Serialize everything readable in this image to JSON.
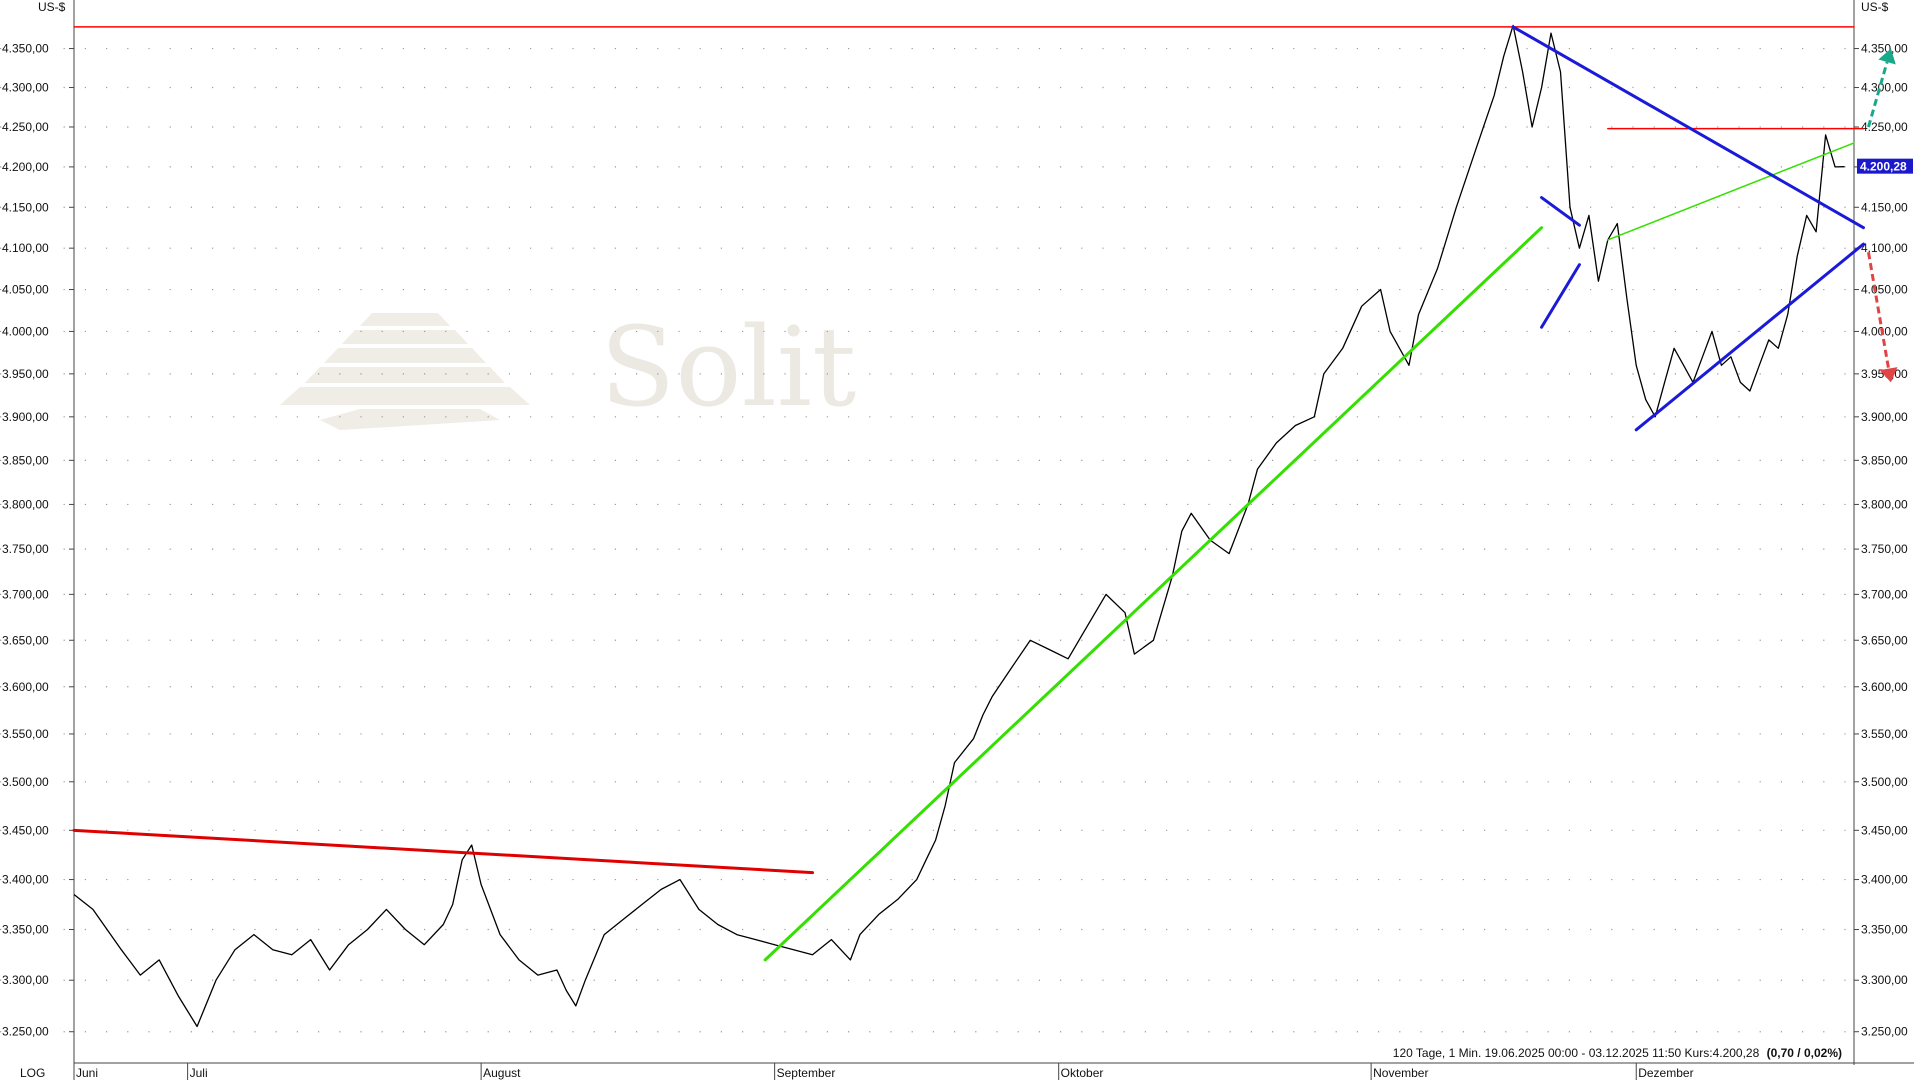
{
  "chart_data": {
    "type": "line",
    "currency_label": "US-$",
    "scale_label": "LOG",
    "watermark": "Solit",
    "footer": {
      "text": "120 Tage, 1 Min. 19.06.2025 00:00 - 03.12.2025 11:50 Kurs:4.200,28",
      "change": "(0,70 / 0,02%)"
    },
    "last_value_label": "4.200,28",
    "last_value": 4200.28,
    "ylim": [
      3220,
      4400
    ],
    "y_scale": "log",
    "grid": true,
    "y_ticks": [
      3250,
      3300,
      3350,
      3400,
      3450,
      3500,
      3550,
      3600,
      3650,
      3700,
      3750,
      3800,
      3850,
      3900,
      3950,
      4000,
      4050,
      4100,
      4150,
      4200,
      4250,
      4300,
      4350
    ],
    "y_tick_labels": [
      "3.250,00",
      "3.300,00",
      "3.350,00",
      "3.400,00",
      "3.450,00",
      "3.500,00",
      "3.550,00",
      "3.600,00",
      "3.650,00",
      "3.700,00",
      "3.750,00",
      "3.800,00",
      "3.850,00",
      "3.900,00",
      "3.950,00",
      "4.000,00",
      "4.050,00",
      "4.100,00",
      "4.150,00",
      "4.200,00",
      "4.250,00",
      "4.300,00",
      "4.350,00"
    ],
    "x_range": [
      "2025-06-19",
      "2025-12-24"
    ],
    "months": [
      {
        "label": "Juni",
        "date": "2025-06-19"
      },
      {
        "label": "Juli",
        "date": "2025-07-01"
      },
      {
        "label": "August",
        "date": "2025-08-01"
      },
      {
        "label": "September",
        "date": "2025-09-01"
      },
      {
        "label": "Oktober",
        "date": "2025-10-01"
      },
      {
        "label": "November",
        "date": "2025-11-03"
      },
      {
        "label": "Dezember",
        "date": "2025-12-01"
      }
    ],
    "series": [
      {
        "values": [
          [
            "2025-06-19",
            3385
          ],
          [
            "2025-06-21",
            3370
          ],
          [
            "2025-06-24",
            3330
          ],
          [
            "2025-06-26",
            3305
          ],
          [
            "2025-06-28",
            3320
          ],
          [
            "2025-06-30",
            3285
          ],
          [
            "2025-07-02",
            3255
          ],
          [
            "2025-07-04",
            3300
          ],
          [
            "2025-07-06",
            3330
          ],
          [
            "2025-07-08",
            3345
          ],
          [
            "2025-07-10",
            3330
          ],
          [
            "2025-07-12",
            3325
          ],
          [
            "2025-07-14",
            3340
          ],
          [
            "2025-07-16",
            3310
          ],
          [
            "2025-07-18",
            3335
          ],
          [
            "2025-07-20",
            3350
          ],
          [
            "2025-07-22",
            3370
          ],
          [
            "2025-07-24",
            3350
          ],
          [
            "2025-07-26",
            3335
          ],
          [
            "2025-07-28",
            3355
          ],
          [
            "2025-07-29",
            3375
          ],
          [
            "2025-07-30",
            3420
          ],
          [
            "2025-07-31",
            3435
          ],
          [
            "2025-08-01",
            3395
          ],
          [
            "2025-08-03",
            3345
          ],
          [
            "2025-08-05",
            3320
          ],
          [
            "2025-08-07",
            3305
          ],
          [
            "2025-08-09",
            3310
          ],
          [
            "2025-08-10",
            3290
          ],
          [
            "2025-08-11",
            3275
          ],
          [
            "2025-08-12",
            3300
          ],
          [
            "2025-08-14",
            3345
          ],
          [
            "2025-08-16",
            3360
          ],
          [
            "2025-08-18",
            3375
          ],
          [
            "2025-08-20",
            3390
          ],
          [
            "2025-08-22",
            3400
          ],
          [
            "2025-08-24",
            3370
          ],
          [
            "2025-08-26",
            3355
          ],
          [
            "2025-08-28",
            3345
          ],
          [
            "2025-08-30",
            3340
          ],
          [
            "2025-09-01",
            3335
          ],
          [
            "2025-09-03",
            3330
          ],
          [
            "2025-09-05",
            3325
          ],
          [
            "2025-09-07",
            3340
          ],
          [
            "2025-09-09",
            3320
          ],
          [
            "2025-09-10",
            3345
          ],
          [
            "2025-09-12",
            3365
          ],
          [
            "2025-09-14",
            3380
          ],
          [
            "2025-09-16",
            3400
          ],
          [
            "2025-09-17",
            3420
          ],
          [
            "2025-09-18",
            3440
          ],
          [
            "2025-09-19",
            3475
          ],
          [
            "2025-09-20",
            3520
          ],
          [
            "2025-09-22",
            3545
          ],
          [
            "2025-09-23",
            3570
          ],
          [
            "2025-09-24",
            3590
          ],
          [
            "2025-09-26",
            3620
          ],
          [
            "2025-09-28",
            3650
          ],
          [
            "2025-09-30",
            3640
          ],
          [
            "2025-10-02",
            3630
          ],
          [
            "2025-10-04",
            3665
          ],
          [
            "2025-10-06",
            3700
          ],
          [
            "2025-10-08",
            3680
          ],
          [
            "2025-10-09",
            3635
          ],
          [
            "2025-10-11",
            3650
          ],
          [
            "2025-10-13",
            3720
          ],
          [
            "2025-10-14",
            3770
          ],
          [
            "2025-10-15",
            3790
          ],
          [
            "2025-10-17",
            3760
          ],
          [
            "2025-10-19",
            3745
          ],
          [
            "2025-10-21",
            3800
          ],
          [
            "2025-10-22",
            3840
          ],
          [
            "2025-10-24",
            3870
          ],
          [
            "2025-10-26",
            3890
          ],
          [
            "2025-10-28",
            3900
          ],
          [
            "2025-10-29",
            3950
          ],
          [
            "2025-10-31",
            3980
          ],
          [
            "2025-11-02",
            4030
          ],
          [
            "2025-11-04",
            4050
          ],
          [
            "2025-11-05",
            4000
          ],
          [
            "2025-11-07",
            3960
          ],
          [
            "2025-11-08",
            4020
          ],
          [
            "2025-11-10",
            4075
          ],
          [
            "2025-11-12",
            4150
          ],
          [
            "2025-11-14",
            4220
          ],
          [
            "2025-11-16",
            4290
          ],
          [
            "2025-11-17",
            4340
          ],
          [
            "2025-11-18",
            4380
          ],
          [
            "2025-11-19",
            4320
          ],
          [
            "2025-11-20",
            4250
          ],
          [
            "2025-11-21",
            4300
          ],
          [
            "2025-11-22",
            4370
          ],
          [
            "2025-11-23",
            4320
          ],
          [
            "2025-11-24",
            4150
          ],
          [
            "2025-11-25",
            4100
          ],
          [
            "2025-11-26",
            4140
          ],
          [
            "2025-11-27",
            4060
          ],
          [
            "2025-11-28",
            4110
          ],
          [
            "2025-11-29",
            4130
          ],
          [
            "2025-11-30",
            4040
          ],
          [
            "2025-12-01",
            3960
          ],
          [
            "2025-12-02",
            3920
          ],
          [
            "2025-12-03",
            3900
          ],
          [
            "2025-12-04",
            3940
          ],
          [
            "2025-12-05",
            3980
          ],
          [
            "2025-12-06",
            3960
          ],
          [
            "2025-12-07",
            3940
          ],
          [
            "2025-12-08",
            3970
          ],
          [
            "2025-12-09",
            4000
          ],
          [
            "2025-12-10",
            3960
          ],
          [
            "2025-12-11",
            3970
          ],
          [
            "2025-12-12",
            3940
          ],
          [
            "2025-12-13",
            3930
          ],
          [
            "2025-12-14",
            3960
          ],
          [
            "2025-12-15",
            3990
          ],
          [
            "2025-12-16",
            3980
          ],
          [
            "2025-12-17",
            4020
          ],
          [
            "2025-12-18",
            4090
          ],
          [
            "2025-12-19",
            4140
          ],
          [
            "2025-12-20",
            4120
          ],
          [
            "2025-12-21",
            4240
          ],
          [
            "2025-12-22",
            4200
          ],
          [
            "2025-12-23",
            4200.28
          ]
        ],
        "color": "#000000"
      }
    ],
    "trendlines": [
      {
        "color": "#ff0000",
        "width": 1.5,
        "from": [
          "2025-06-19",
          4378
        ],
        "to": [
          "2025-12-24",
          4378
        ]
      },
      {
        "color": "#ff0000",
        "width": 1.5,
        "from": [
          "2025-11-28",
          4248
        ],
        "to": [
          "2025-12-25",
          4248
        ]
      },
      {
        "color": "#e00000",
        "width": 3,
        "from": [
          "2025-06-19",
          3450
        ],
        "to": [
          "2025-09-05",
          3407
        ]
      },
      {
        "color": "#33e000",
        "width": 3,
        "from": [
          "2025-08-31",
          3320
        ],
        "to": [
          "2025-11-21",
          4125
        ]
      },
      {
        "color": "#33e000",
        "width": 1.5,
        "from": [
          "2025-11-28",
          4110
        ],
        "to": [
          "2025-12-24",
          4230
        ]
      },
      {
        "color": "#1a1ad8",
        "width": 3,
        "from": [
          "2025-11-18",
          4378
        ],
        "to": [
          "2025-12-25",
          4125
        ]
      },
      {
        "color": "#1a1ad8",
        "width": 3,
        "from": [
          "2025-11-21",
          4162
        ],
        "to": [
          "2025-11-25",
          4128
        ]
      },
      {
        "color": "#1a1ad8",
        "width": 3,
        "from": [
          "2025-11-21",
          4005
        ],
        "to": [
          "2025-11-25",
          4080
        ]
      },
      {
        "color": "#1a1ad8",
        "width": 3,
        "from": [
          "2025-12-01",
          3885
        ],
        "to": [
          "2025-12-25",
          4105
        ]
      }
    ],
    "arrows": [
      {
        "direction": "up",
        "color": "#1aa88a",
        "from": [
          "2025-12-25",
          4250
        ],
        "to": [
          "2025-12-26",
          4350
        ]
      },
      {
        "direction": "down",
        "color": "#e04444",
        "from": [
          "2025-12-25",
          4095
        ],
        "to": [
          "2025-12-26",
          3940
        ]
      }
    ]
  }
}
